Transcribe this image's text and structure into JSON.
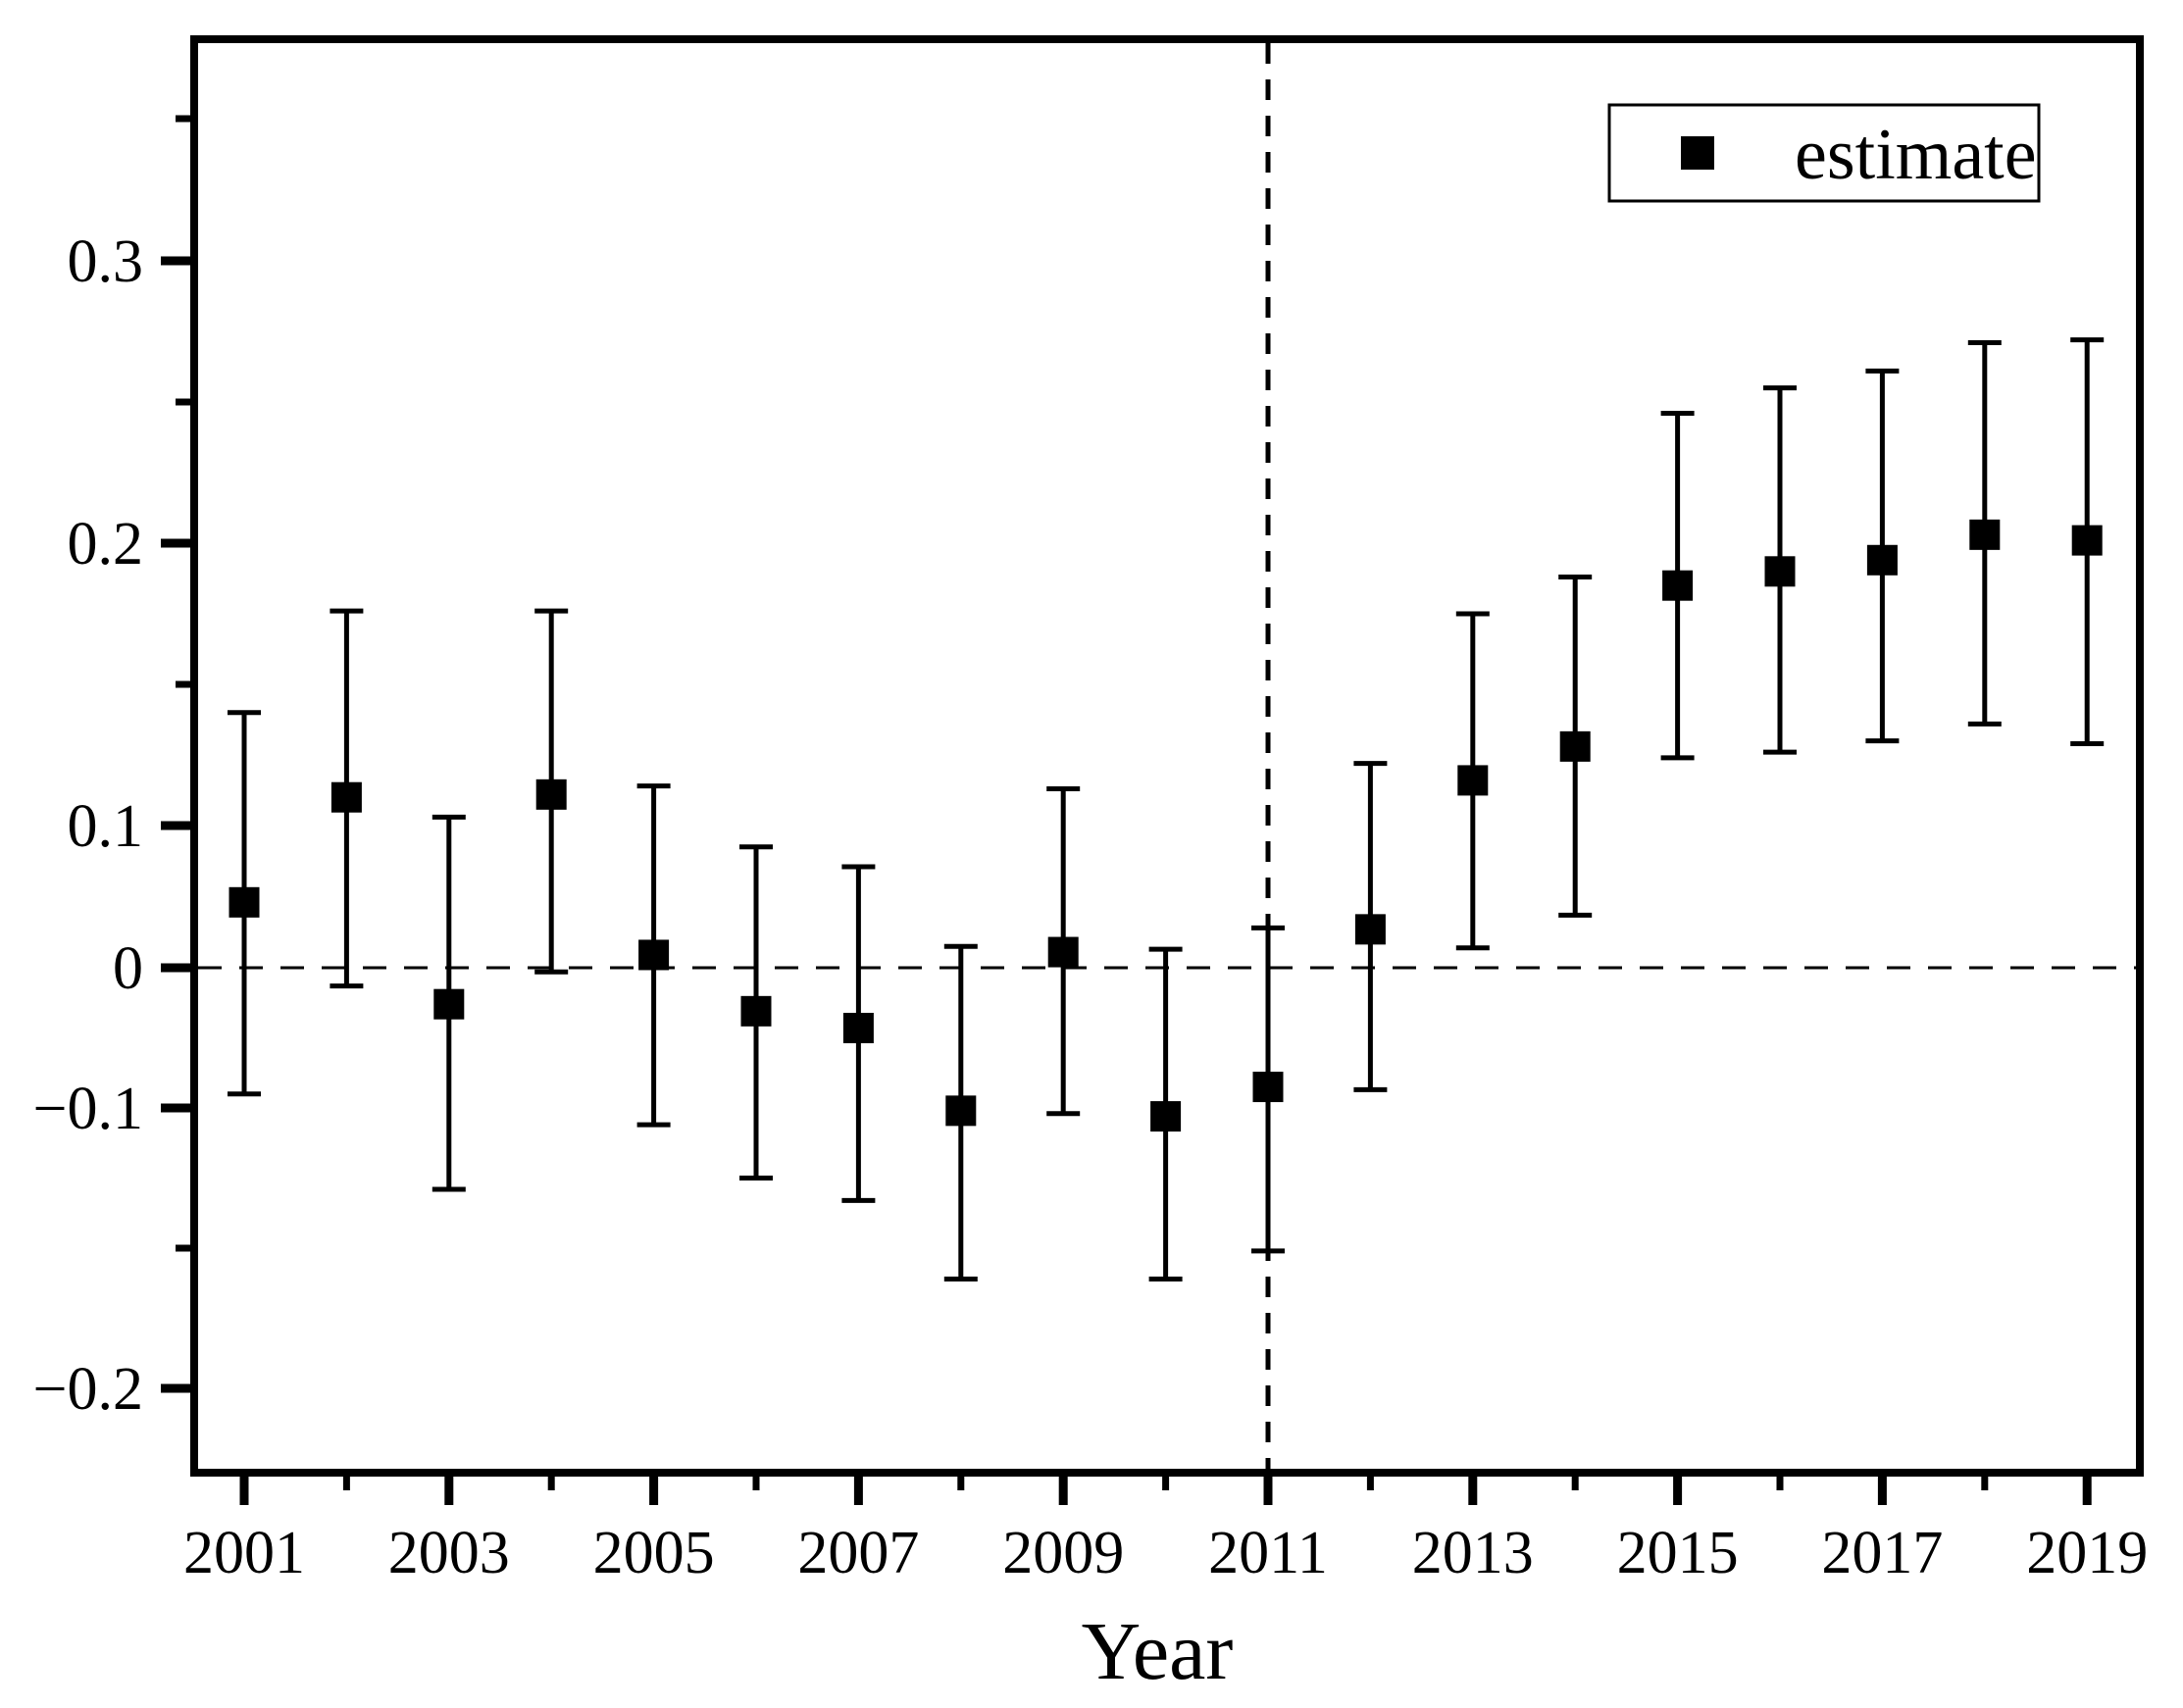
{
  "page": {
    "background": "#ffffff",
    "foreground": "#000000"
  },
  "chart_data": {
    "type": "scatter",
    "subtype": "point-estimates-with-error-bars",
    "title": "",
    "xlabel": "Year",
    "ylabel": "",
    "grid": "off",
    "legend": {
      "position": "top-right",
      "entries": [
        {
          "label": "estimate",
          "marker": "filled-square",
          "color": "#000000"
        }
      ]
    },
    "x": {
      "tick_labels_major": [
        "2001",
        "2003",
        "2005",
        "2007",
        "2009",
        "2011",
        "2013",
        "2015",
        "2017",
        "2019"
      ],
      "tick_values_major": [
        2001,
        2003,
        2005,
        2007,
        2009,
        2011,
        2013,
        2015,
        2017,
        2019
      ],
      "tick_values_minor": [
        2002,
        2004,
        2006,
        2008,
        2010,
        2012,
        2014,
        2016,
        2018
      ],
      "range": [
        2000.5,
        2019.5
      ]
    },
    "y": {
      "tick_labels_major": [
        "0.3",
        "0.2",
        "0.1",
        "0",
        "−0.1",
        "−0.2"
      ],
      "tick_values_major": [
        0.3,
        0.2,
        0.1,
        0,
        -0.1,
        -0.2
      ],
      "tick_values_minor": [
        0.35,
        0.25,
        0.15,
        -0.15
      ],
      "range": [
        -0.25,
        0.37
      ],
      "note": "As printed, tick spacing between -0.1 and 0.1 is half the spacing used elsewhere on the axis"
    },
    "reference_lines": {
      "horizontal_y": 0,
      "vertical_x": 2011,
      "style": "dashed",
      "color": "#000000"
    },
    "series": [
      {
        "name": "estimate",
        "marker": "filled-square",
        "color": "#000000",
        "points": [
          {
            "year": 2001,
            "estimate": 0.046,
            "ci_low": -0.09,
            "ci_high": 0.14
          },
          {
            "year": 2002,
            "estimate": 0.11,
            "ci_low": -0.013,
            "ci_high": 0.176
          },
          {
            "year": 2003,
            "estimate": -0.026,
            "ci_low": -0.129,
            "ci_high": 0.103
          },
          {
            "year": 2004,
            "estimate": 0.111,
            "ci_low": -0.003,
            "ci_high": 0.176
          },
          {
            "year": 2005,
            "estimate": 0.009,
            "ci_low": -0.106,
            "ci_high": 0.114
          },
          {
            "year": 2006,
            "estimate": -0.031,
            "ci_low": -0.125,
            "ci_high": 0.085
          },
          {
            "year": 2007,
            "estimate": -0.043,
            "ci_low": -0.133,
            "ci_high": 0.071
          },
          {
            "year": 2008,
            "estimate": -0.101,
            "ci_low": -0.161,
            "ci_high": 0.015
          },
          {
            "year": 2009,
            "estimate": 0.011,
            "ci_low": -0.102,
            "ci_high": 0.113
          },
          {
            "year": 2010,
            "estimate": -0.103,
            "ci_low": -0.161,
            "ci_high": 0.013
          },
          {
            "year": 2011,
            "estimate": -0.085,
            "ci_low": -0.151,
            "ci_high": 0.028
          },
          {
            "year": 2012,
            "estimate": 0.027,
            "ci_low": -0.087,
            "ci_high": 0.122
          },
          {
            "year": 2013,
            "estimate": 0.116,
            "ci_low": 0.014,
            "ci_high": 0.175
          },
          {
            "year": 2014,
            "estimate": 0.128,
            "ci_low": 0.037,
            "ci_high": 0.188
          },
          {
            "year": 2015,
            "estimate": 0.185,
            "ci_low": 0.124,
            "ci_high": 0.246
          },
          {
            "year": 2016,
            "estimate": 0.19,
            "ci_low": 0.126,
            "ci_high": 0.255
          },
          {
            "year": 2017,
            "estimate": 0.194,
            "ci_low": 0.13,
            "ci_high": 0.261
          },
          {
            "year": 2018,
            "estimate": 0.203,
            "ci_low": 0.136,
            "ci_high": 0.271
          },
          {
            "year": 2019,
            "estimate": 0.201,
            "ci_low": 0.129,
            "ci_high": 0.272
          }
        ]
      }
    ]
  }
}
